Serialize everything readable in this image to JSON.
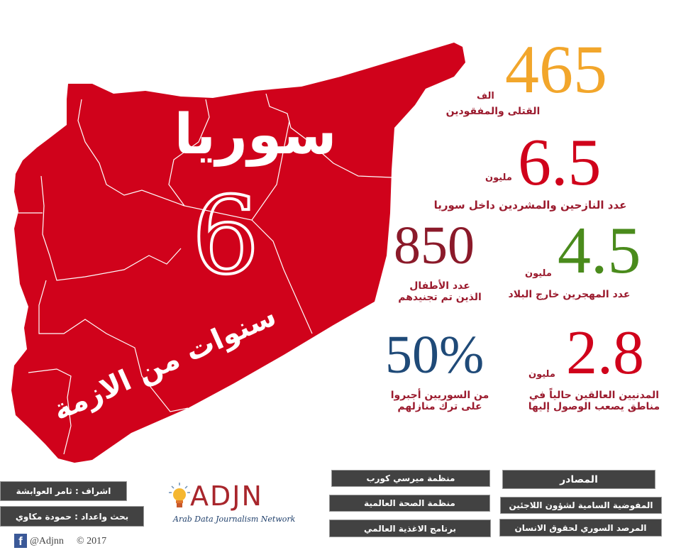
{
  "colors": {
    "map_red": "#d0021b",
    "orange": "#f2a62b",
    "green": "#4a8b1c",
    "dark_red": "#8b1a2a",
    "blue": "#1f4a78",
    "box_dark": "#424242"
  },
  "map": {
    "title": "سوريا",
    "number": "6",
    "subtitle": "سنوات من الازمة"
  },
  "stats": [
    {
      "value": "465",
      "unit": "الف",
      "label": "القتلى والمفقودين"
    },
    {
      "value": "6.5",
      "unit": "مليون",
      "label": "عدد النازحين والمشردين داخل سوريا"
    },
    {
      "value": "850",
      "label_line1": "عدد الأطفال",
      "label_line2": "الذين تم تجنيدهم"
    },
    {
      "value": "4.5",
      "unit": "مليون",
      "label": "عدد المهجرين خارج البلاد"
    },
    {
      "value": "50%",
      "label_line1": "من السوريين  أجبروا",
      "label_line2": "على ترك منازلهم"
    },
    {
      "value": "2.8",
      "unit": "مليون",
      "label_line1": "المدنيين العالقين حالياً في",
      "label_line2": "مناطق يصعب الوصول إليها"
    }
  ],
  "credits": {
    "supervision": "اشراف : ثامر العوابشة",
    "research": "بحث واعداد : حمودة مكاوي",
    "facebook_handle": "@Adjnn",
    "copyright": "© 2017",
    "social_icon": "facebook-icon"
  },
  "logo": {
    "name": "ADJN",
    "tagline": "Arab Data Journalism Network",
    "icon": "lightbulb-icon"
  },
  "sources": {
    "title": "المصادر",
    "items": [
      "المفوضية السامية لشؤون اللاجئين",
      "المرصد السوري لحقوق الانسان",
      "منظمة ميرسي كورب",
      "منظمة الصحة العالمية",
      "برنامج الاغذية العالمي"
    ]
  }
}
